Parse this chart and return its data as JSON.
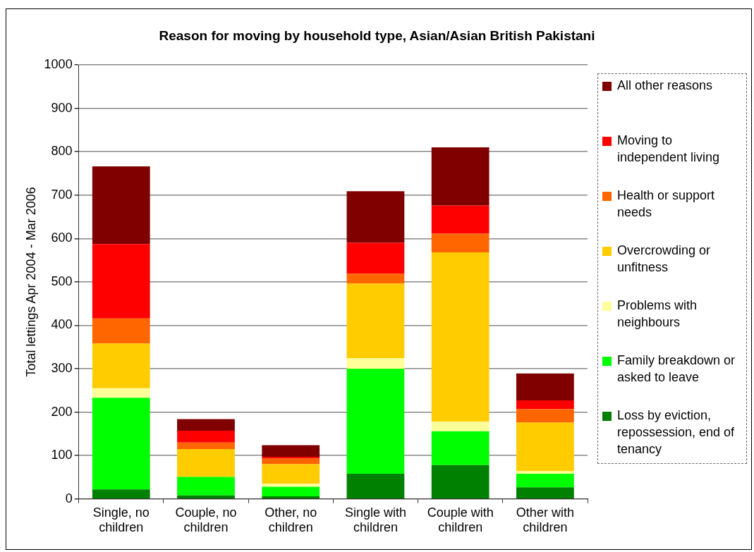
{
  "chart_data": {
    "type": "bar",
    "stacked": true,
    "title": "Reason for moving by household type, Asian/Asian British Pakistani",
    "ylabel": "Total lettings Apr 2004 - Mar 2006",
    "categories": [
      "Single, no children",
      "Couple, no children",
      "Other, no children",
      "Single with children",
      "Couple with children",
      "Other with children"
    ],
    "series": [
      {
        "name": "Loss by eviction, repossession, end of tenancy",
        "color": "#008000",
        "values": [
          22,
          8,
          6,
          58,
          78,
          27
        ]
      },
      {
        "name": "Family breakdown or asked to leave",
        "color": "#00ff00",
        "values": [
          211,
          43,
          22,
          242,
          78,
          31
        ]
      },
      {
        "name": "Problems with neighbours",
        "color": "#ffff99",
        "values": [
          22,
          null,
          7,
          24,
          22,
          6
        ]
      },
      {
        "name": "Overcrowding or unfitness",
        "color": "#ffcc00",
        "values": [
          103,
          64,
          45,
          172,
          390,
          112
        ]
      },
      {
        "name": "Health or support needs",
        "color": "#ff6600",
        "values": [
          58,
          15,
          13,
          23,
          43,
          31
        ]
      },
      {
        "name": "Moving to independent living",
        "color": "#ff0000",
        "values": [
          171,
          27,
          4,
          71,
          65,
          20
        ]
      },
      {
        "name": "All other reasons",
        "color": "#800000",
        "values": [
          179,
          27,
          27,
          119,
          134,
          62
        ]
      }
    ],
    "ylim": [
      0,
      1000
    ],
    "yticks": [
      0,
      100,
      200,
      300,
      400,
      500,
      600,
      700,
      800,
      900,
      1000
    ],
    "grid": "y",
    "legend": "right"
  }
}
